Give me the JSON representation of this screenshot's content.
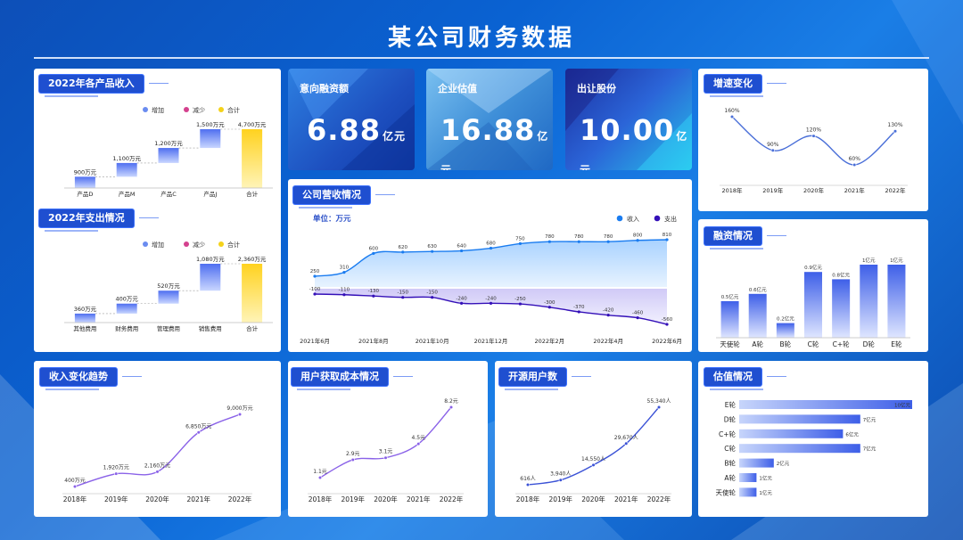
{
  "page": {
    "title": "某公司财务数据"
  },
  "colors": {
    "increase": "#6a8cf0",
    "decrease": "#d4418e",
    "total": "#f4d21a",
    "accent": "#1f4fd0"
  },
  "kpis": [
    {
      "label": "意向融资额",
      "value": "6.88",
      "unit": "亿元"
    },
    {
      "label": "企业估值",
      "value": "16.88",
      "unit": "亿元"
    },
    {
      "label": "出让股份",
      "value": "10.00",
      "unit": "亿元"
    }
  ],
  "chart_data": [
    {
      "id": "revenue2022",
      "title": "2022年各产品收入",
      "type": "bar",
      "legend": [
        "增加",
        "减少",
        "合计"
      ],
      "categories": [
        "产品D",
        "产品M",
        "产品C",
        "产品J",
        "合计"
      ],
      "values": [
        900,
        1100,
        1200,
        1500,
        4700
      ],
      "base": [
        0,
        900,
        2000,
        3200,
        0
      ],
      "labels": [
        "900万元",
        "1,100万元",
        "1,200万元",
        "1,500万元",
        "4,700万元"
      ],
      "kinds": [
        "inc",
        "inc",
        "inc",
        "inc",
        "total"
      ]
    },
    {
      "id": "expense2022",
      "title": "2022年支出情况",
      "type": "bar",
      "legend": [
        "增加",
        "减少",
        "合计"
      ],
      "categories": [
        "其他费用",
        "财务费用",
        "管理费用",
        "销售费用",
        "合计"
      ],
      "values": [
        360,
        400,
        520,
        1080,
        2360
      ],
      "base": [
        0,
        360,
        760,
        1280,
        0
      ],
      "labels": [
        "360万元",
        "400万元",
        "520万元",
        "1,080万元",
        "2,360万元"
      ],
      "kinds": [
        "inc",
        "inc",
        "inc",
        "inc",
        "total"
      ]
    },
    {
      "id": "growth",
      "title": "增速变化",
      "type": "line",
      "categories": [
        "2018年",
        "2019年",
        "2020年",
        "2021年",
        "2022年"
      ],
      "values": [
        160,
        90,
        120,
        60,
        130
      ],
      "labels": [
        "160%",
        "90%",
        "120%",
        "60%",
        "130%"
      ]
    },
    {
      "id": "operating",
      "title": "公司营收情况",
      "type": "area",
      "unit_label": "单位：万元",
      "legend": [
        "收入",
        "支出"
      ],
      "x_ticks": [
        "2021年6月",
        "2021年8月",
        "2021年10月",
        "2021年12月",
        "2022年2月",
        "2022年4月",
        "2022年6月"
      ],
      "series": [
        {
          "name": "收入",
          "values": [
            250,
            310,
            600,
            620,
            630,
            640,
            680,
            750,
            780,
            780,
            780,
            800,
            810
          ]
        },
        {
          "name": "支出",
          "values": [
            -100,
            -110,
            -130,
            -150,
            -150,
            -240,
            -240,
            -250,
            -300,
            -370,
            -420,
            -460,
            -560
          ]
        }
      ]
    },
    {
      "id": "financing",
      "title": "融资情况",
      "type": "bar",
      "categories": [
        "天使轮",
        "A轮",
        "B轮",
        "C轮",
        "C+轮",
        "D轮",
        "E轮"
      ],
      "values": [
        0.5,
        0.6,
        0.2,
        0.9,
        0.8,
        1,
        1
      ],
      "labels": [
        "0.5亿元",
        "0.6亿元",
        "0.2亿元",
        "0.9亿元",
        "0.8亿元",
        "1亿元",
        "1亿元"
      ]
    },
    {
      "id": "revtrend",
      "title": "收入变化趋势",
      "type": "line",
      "categories": [
        "2018年",
        "2019年",
        "2020年",
        "2021年",
        "2022年"
      ],
      "values": [
        400,
        1920,
        2160,
        6850,
        9000
      ],
      "labels": [
        "400万元",
        "1,920万元",
        "2,160万元",
        "6,850万元",
        "9,000万元"
      ]
    },
    {
      "id": "cac",
      "title": "用户获取成本情况",
      "type": "line",
      "categories": [
        "2018年",
        "2019年",
        "2020年",
        "2021年",
        "2022年"
      ],
      "values": [
        1.1,
        2.9,
        3.1,
        4.5,
        8.2
      ],
      "labels": [
        "1.1元",
        "2.9元",
        "3.1元",
        "4.5元",
        "8.2元"
      ]
    },
    {
      "id": "users",
      "title": "开源用户数",
      "type": "line",
      "categories": [
        "2018年",
        "2019年",
        "2020年",
        "2021年",
        "2022年"
      ],
      "values": [
        616,
        3940,
        14550,
        29670,
        55340
      ],
      "labels": [
        "616人",
        "3,940人",
        "14,550人",
        "29,670人",
        "55,340人"
      ]
    },
    {
      "id": "valuation",
      "title": "估值情况",
      "type": "bar",
      "categories": [
        "E轮",
        "D轮",
        "C+轮",
        "C轮",
        "B轮",
        "A轮",
        "天使轮"
      ],
      "values": [
        10,
        7,
        6,
        7,
        2,
        1,
        1
      ],
      "labels": [
        "10亿元",
        "7亿元",
        "6亿元",
        "7亿元",
        "2亿元",
        "1亿元",
        "1亿元"
      ]
    }
  ]
}
